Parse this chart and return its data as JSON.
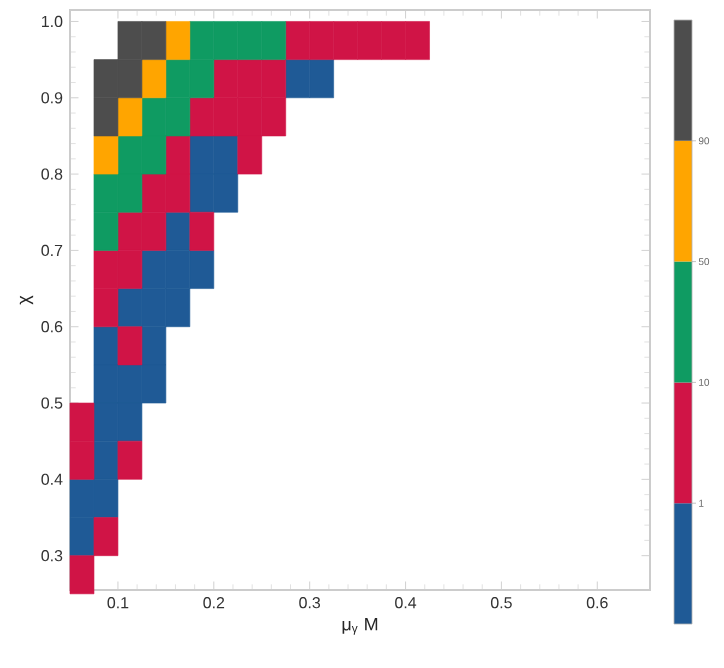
{
  "chart_data": {
    "type": "scatter",
    "xlabel": "μ$_{γ}$ M",
    "ylabel": "χ",
    "marker": "square",
    "xlim": [
      0.05,
      0.655
    ],
    "ylim": [
      0.255,
      1.015
    ],
    "xticks": [
      0.1,
      0.2,
      0.3,
      0.4,
      0.5,
      0.6
    ],
    "yticks": [
      0.3,
      0.4,
      0.5,
      0.6,
      0.7,
      0.8,
      0.9,
      {
        "value": 1.0,
        "label": "1.0"
      }
    ],
    "annotations": [
      "1",
      "10",
      "50",
      "90"
    ],
    "series": [
      {
        "color": "#1f5a96",
        "x": [
          0.2875,
          0.3125,
          0.1875,
          0.2125,
          0.1875,
          0.2125,
          0.1625,
          0.1375,
          0.1625,
          0.1875,
          0.1125,
          0.1375,
          0.1625,
          0.0875,
          0.1375,
          0.0875,
          0.1125,
          0.1375,
          0.0875,
          0.1125,
          0.0875,
          0.0625,
          0.0875,
          0.0625
        ],
        "values": [
          0.925,
          0.925,
          0.825,
          0.825,
          0.775,
          0.775,
          0.725,
          0.675,
          0.675,
          0.675,
          0.625,
          0.625,
          0.625,
          0.575,
          0.575,
          0.525,
          0.525,
          0.525,
          0.475,
          0.475,
          0.425,
          0.375,
          0.375,
          0.325
        ]
      },
      {
        "color": "#d01446",
        "x": [
          0.2875,
          0.3125,
          0.3375,
          0.3625,
          0.3875,
          0.4125,
          0.2125,
          0.2375,
          0.2625,
          0.1875,
          0.2125,
          0.2375,
          0.2625,
          0.1625,
          0.2375,
          0.1375,
          0.1625,
          0.1125,
          0.1375,
          0.1875,
          0.0875,
          0.1125,
          0.0875,
          0.1125,
          0.0625,
          0.0625,
          0.1125,
          0.0875,
          0.0625
        ],
        "values": [
          0.975,
          0.975,
          0.975,
          0.975,
          0.975,
          0.975,
          0.925,
          0.925,
          0.925,
          0.875,
          0.875,
          0.875,
          0.875,
          0.825,
          0.825,
          0.775,
          0.775,
          0.725,
          0.725,
          0.725,
          0.675,
          0.675,
          0.625,
          0.575,
          0.475,
          0.425,
          0.425,
          0.325,
          0.275
        ]
      },
      {
        "color": "#0f9b62",
        "x": [
          0.1875,
          0.2125,
          0.2375,
          0.2625,
          0.1625,
          0.1875,
          0.1375,
          0.1625,
          0.1125,
          0.1375,
          0.0875,
          0.1125,
          0.0875
        ],
        "values": [
          0.975,
          0.975,
          0.975,
          0.975,
          0.925,
          0.925,
          0.875,
          0.875,
          0.825,
          0.825,
          0.775,
          0.775,
          0.725
        ]
      },
      {
        "color": "#ffa500",
        "x": [
          0.1625,
          0.1375,
          0.1125,
          0.0875
        ],
        "values": [
          0.975,
          0.925,
          0.875,
          0.825
        ]
      },
      {
        "color": "#4d4d4d",
        "x": [
          0.1125,
          0.1375,
          0.0875,
          0.1125,
          0.0875
        ],
        "values": [
          0.975,
          0.975,
          0.925,
          0.925,
          0.875
        ]
      }
    ]
  }
}
